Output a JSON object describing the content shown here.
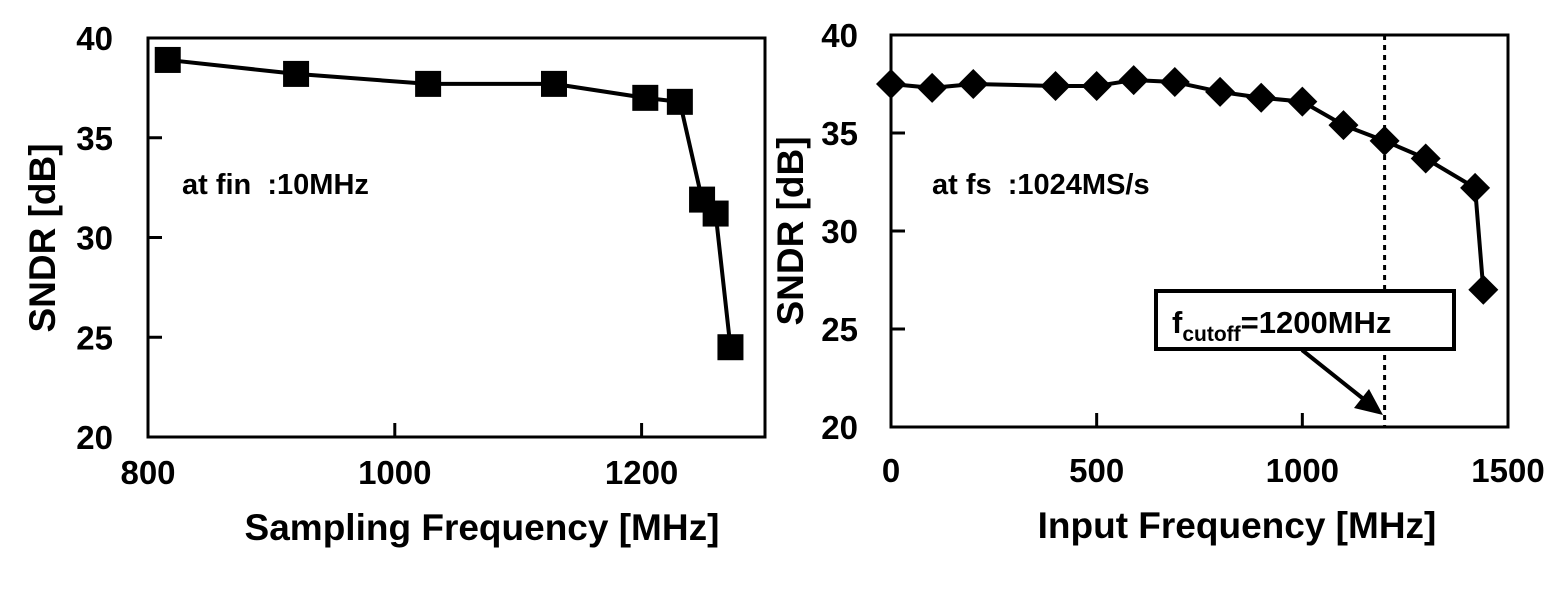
{
  "chart_data": [
    {
      "type": "line",
      "xlabel": "Sampling Frequency [MHz]",
      "ylabel": "SNDR [dB]",
      "xlim": [
        800,
        1300
      ],
      "ylim": [
        20,
        40
      ],
      "xticks": [
        800,
        1000,
        1200
      ],
      "yticks": [
        20,
        25,
        30,
        35,
        40
      ],
      "grid": false,
      "annotation": "at fin  :10MHz",
      "series": [
        {
          "marker": "square",
          "color": "#000000",
          "x": [
            816,
            920,
            1027,
            1129,
            1203,
            1231,
            1249,
            1260,
            1272
          ],
          "y": [
            38.9,
            38.2,
            37.7,
            37.7,
            37.0,
            36.8,
            31.9,
            31.2,
            24.5
          ]
        }
      ]
    },
    {
      "type": "line",
      "xlabel": "Input Frequency [MHz]",
      "ylabel": "SNDR [dB]",
      "xlim": [
        0,
        1500
      ],
      "ylim": [
        20,
        40
      ],
      "xticks": [
        0,
        500,
        1000,
        1500
      ],
      "yticks": [
        20,
        25,
        30,
        35,
        40
      ],
      "grid": false,
      "annotation": "at fs  :1024MS/s",
      "cutoff_label_main": "f",
      "cutoff_label_sub": "cutoff",
      "cutoff_label_rest": "=1200MHz",
      "cutoff_x": 1200,
      "series": [
        {
          "marker": "diamond",
          "color": "#000000",
          "x": [
            0,
            100,
            200,
            400,
            500,
            590,
            690,
            800,
            900,
            1000,
            1100,
            1200,
            1300,
            1420,
            1440
          ],
          "y": [
            37.5,
            37.3,
            37.5,
            37.4,
            37.4,
            37.7,
            37.6,
            37.1,
            36.8,
            36.6,
            35.4,
            34.6,
            33.7,
            32.2,
            27.0
          ]
        }
      ]
    }
  ]
}
